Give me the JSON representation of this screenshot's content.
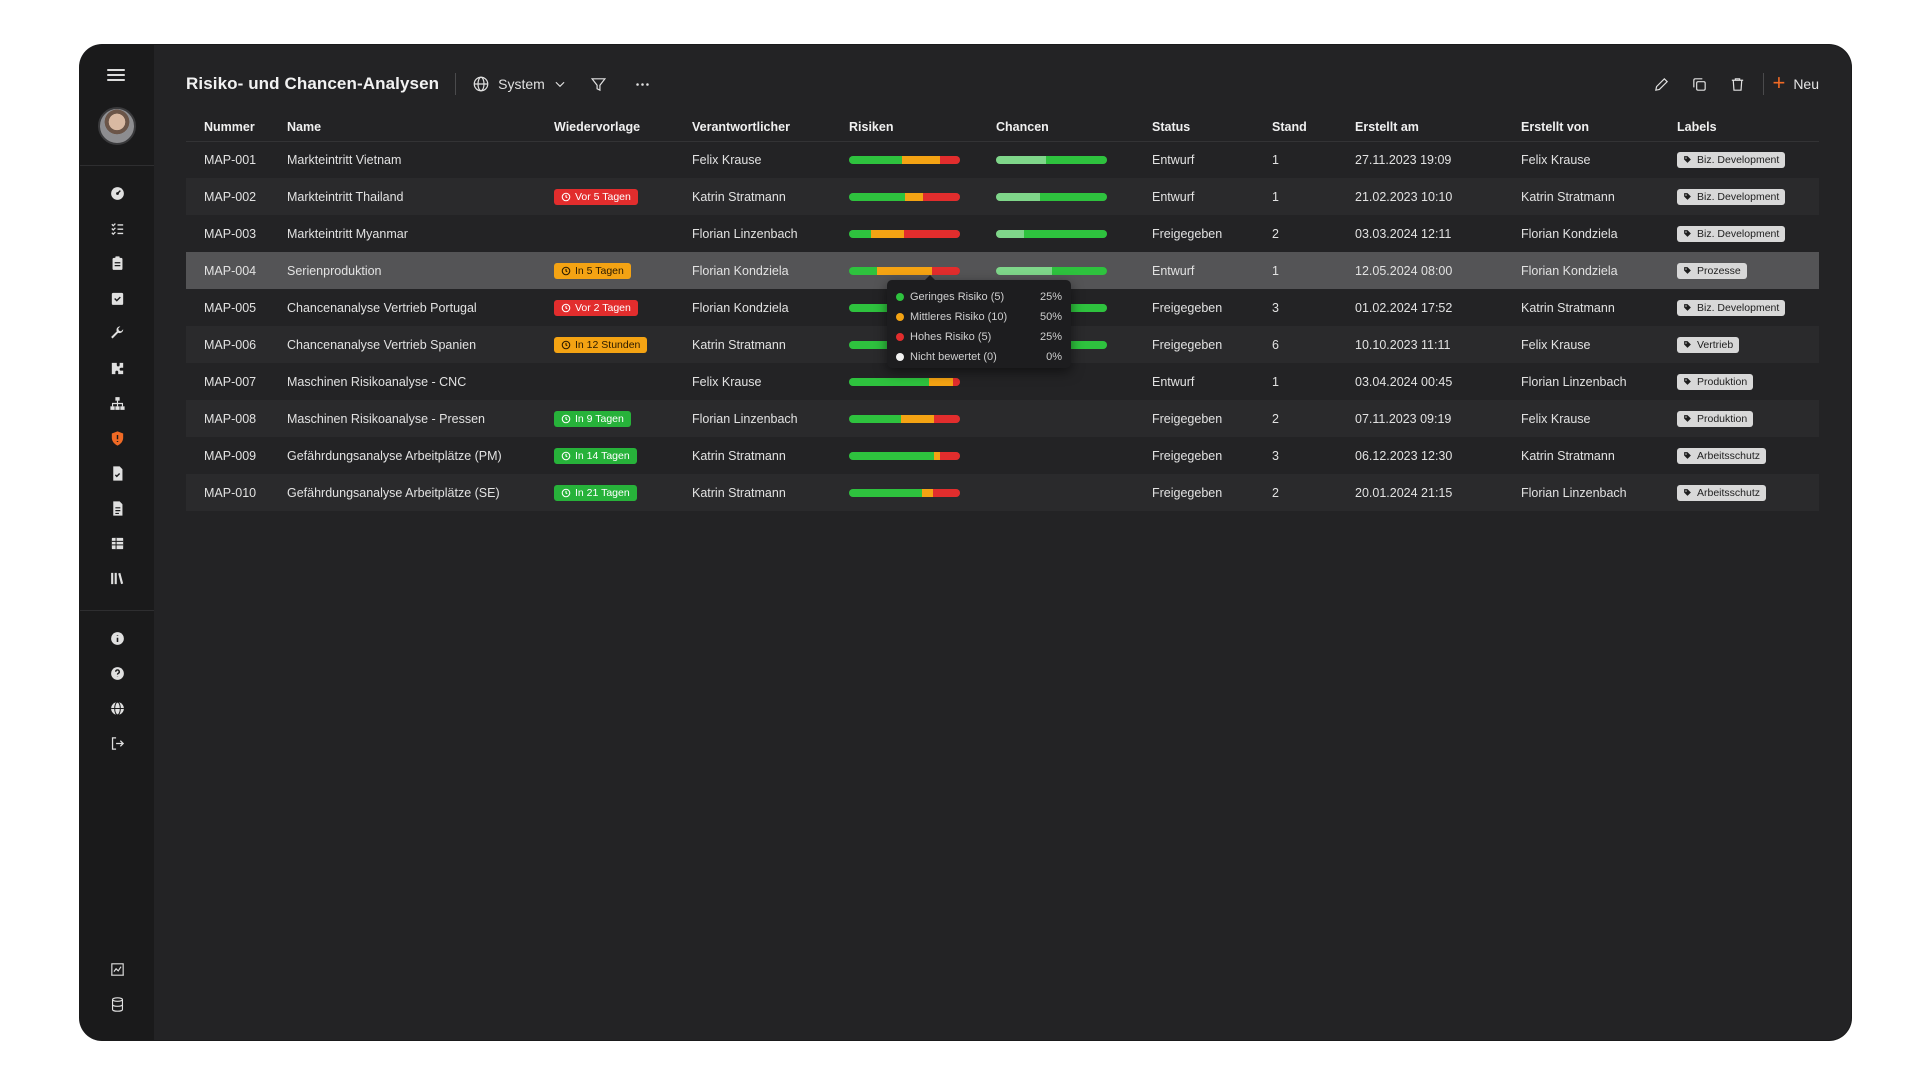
{
  "header": {
    "title": "Risiko- und Chancen-Analysen",
    "scope_label": "System",
    "new_label": "Neu"
  },
  "sidebar": {
    "top_icons": [
      "dashboard-icon",
      "checklist-icon",
      "clipboard-icon",
      "calendar-check-icon",
      "wrench-icon",
      "puzzle-icon",
      "sitemap-icon",
      "shield-icon",
      "file-check-icon",
      "file-text-icon",
      "table-icon",
      "library-icon"
    ],
    "info_icons": [
      "info-icon",
      "help-icon",
      "globe-icon",
      "logout-icon"
    ],
    "bottom_icons": [
      "chart-icon",
      "database-icon"
    ],
    "active_icon": "shield-icon",
    "accent": "#f06a25"
  },
  "columns": [
    "Nummer",
    "Name",
    "Wiedervorlage",
    "Verantwortlicher",
    "Risiken",
    "Chancen",
    "Status",
    "Stand",
    "Erstellt am",
    "Erstellt von",
    "Labels"
  ],
  "colors": {
    "low": "#2ec23e",
    "medium": "#f4a313",
    "high": "#e22d2d",
    "none": "#d8d8d8",
    "chance_light": "#7fd68a",
    "chance_dark": "#2ec23e"
  },
  "rows": [
    {
      "nummer": "MAP-001",
      "name": "Markteintritt Vietnam",
      "wiedervorlage": "",
      "wv_color": "",
      "verantwortlicher": "Felix Krause",
      "risks": [
        0.48,
        0.34,
        0.18
      ],
      "chances": [
        0.45,
        0.55
      ],
      "status": "Entwurf",
      "stand": "1",
      "erstellt_am": "27.11.2023 19:09",
      "erstellt_von": "Felix Krause",
      "label": "Biz. Development"
    },
    {
      "nummer": "MAP-002",
      "name": "Markteintritt Thailand",
      "wiedervorlage": "Vor 5 Tagen",
      "wv_color": "red",
      "verantwortlicher": "Katrin Stratmann",
      "risks": [
        0.5,
        0.17,
        0.33
      ],
      "chances": [
        0.4,
        0.6
      ],
      "status": "Entwurf",
      "stand": "1",
      "erstellt_am": "21.02.2023 10:10",
      "erstellt_von": "Katrin Stratmann",
      "label": "Biz. Development"
    },
    {
      "nummer": "MAP-003",
      "name": "Markteintritt Myanmar",
      "wiedervorlage": "",
      "wv_color": "",
      "verantwortlicher": "Florian Linzenbach",
      "risks": [
        0.2,
        0.3,
        0.5
      ],
      "chances": [
        0.25,
        0.75
      ],
      "status": "Freigegeben",
      "stand": "2",
      "erstellt_am": "03.03.2024 12:11",
      "erstellt_von": "Florian Kondziela",
      "label": "Biz. Development"
    },
    {
      "nummer": "MAP-004",
      "name": "Serienproduktion",
      "wiedervorlage": "In 5 Tagen",
      "wv_color": "orange",
      "verantwortlicher": "Florian Kondziela",
      "risks": [
        0.25,
        0.5,
        0.25
      ],
      "chances": [
        0.5,
        0.5
      ],
      "status": "Entwurf",
      "stand": "1",
      "erstellt_am": "12.05.2024 08:00",
      "erstellt_von": "Florian Kondziela",
      "label": "Prozesse"
    },
    {
      "nummer": "MAP-005",
      "name": "Chancenanalyse Vertrieb Portugal",
      "wiedervorlage": "Vor 2 Tagen",
      "wv_color": "red",
      "verantwortlicher": "Florian Kondziela",
      "risks": [
        0.4,
        0.3,
        0.3
      ],
      "chances": [
        0.55,
        0.45
      ],
      "status": "Freigegeben",
      "stand": "3",
      "erstellt_am": "01.02.2024 17:52",
      "erstellt_von": "Katrin Stratmann",
      "label": "Biz. Development"
    },
    {
      "nummer": "MAP-006",
      "name": "Chancenanalyse Vertrieb Spanien",
      "wiedervorlage": "In 12 Stunden",
      "wv_color": "orange",
      "verantwortlicher": "Katrin Stratmann",
      "risks": [
        0.4,
        0.3,
        0.3
      ],
      "chances": [
        0.3,
        0.7
      ],
      "status": "Freigegeben",
      "stand": "6",
      "erstellt_am": "10.10.2023 11:11",
      "erstellt_von": "Felix Krause",
      "label": "Vertrieb"
    },
    {
      "nummer": "MAP-007",
      "name": "Maschinen Risikoanalyse - CNC",
      "wiedervorlage": "",
      "wv_color": "",
      "verantwortlicher": "Felix Krause",
      "risks": [
        0.72,
        0.22,
        0.06
      ],
      "chances": [],
      "status": "Entwurf",
      "stand": "1",
      "erstellt_am": "03.04.2024 00:45",
      "erstellt_von": "Florian Linzenbach",
      "label": "Produktion"
    },
    {
      "nummer": "MAP-008",
      "name": "Maschinen Risikoanalyse - Pressen",
      "wiedervorlage": "In 9 Tagen",
      "wv_color": "green",
      "verantwortlicher": "Florian Linzenbach",
      "risks": [
        0.47,
        0.3,
        0.23
      ],
      "chances": [],
      "status": "Freigegeben",
      "stand": "2",
      "erstellt_am": "07.11.2023 09:19",
      "erstellt_von": "Felix Krause",
      "label": "Produktion"
    },
    {
      "nummer": "MAP-009",
      "name": "Gefährdungsanalyse Arbeitplätze (PM)",
      "wiedervorlage": "In 14 Tagen",
      "wv_color": "green",
      "verantwortlicher": "Katrin Stratmann",
      "risks": [
        0.77,
        0.05,
        0.18
      ],
      "chances": [],
      "status": "Freigegeben",
      "stand": "3",
      "erstellt_am": "06.12.2023 12:30",
      "erstellt_von": "Katrin Stratmann",
      "label": "Arbeitsschutz"
    },
    {
      "nummer": "MAP-010",
      "name": "Gefährdungsanalyse Arbeitplätze (SE)",
      "wiedervorlage": "In 21 Tagen",
      "wv_color": "green",
      "verantwortlicher": "Katrin Stratmann",
      "risks": [
        0.66,
        0.1,
        0.24
      ],
      "chances": [],
      "status": "Freigegeben",
      "stand": "2",
      "erstellt_am": "20.01.2024 21:15",
      "erstellt_von": "Florian Linzenbach",
      "label": "Arbeitsschutz"
    }
  ],
  "highlight_row": 3,
  "tooltip": {
    "items": [
      {
        "label": "Geringes Risiko (5)",
        "pct": "25%",
        "color": "#2ec23e"
      },
      {
        "label": "Mittleres Risiko (10)",
        "pct": "50%",
        "color": "#f4a313"
      },
      {
        "label": "Hohes Risiko (5)",
        "pct": "25%",
        "color": "#e22d2d"
      },
      {
        "label": "Nicht bewertet (0)",
        "pct": "0%",
        "color": "#f2f2f2"
      }
    ]
  }
}
